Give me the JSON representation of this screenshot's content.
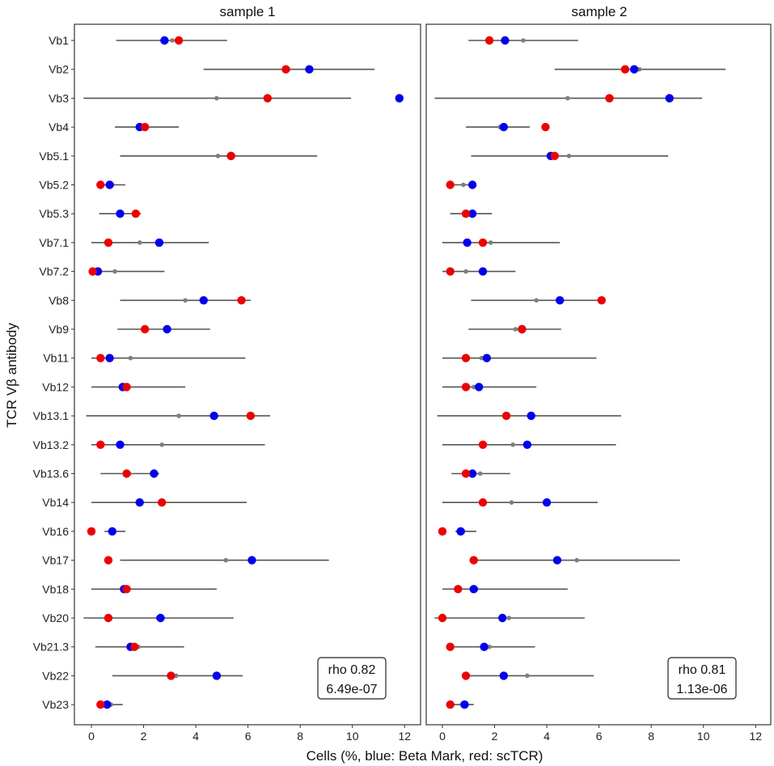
{
  "chart_data": {
    "type": "scatter",
    "subtype": "dot-and-interval",
    "ylabel": "TCR Vβ antibody",
    "xlabel": "Cells (%, blue: Beta Mark, red: scTCR)",
    "xlim": [
      -0.4,
      12.4
    ],
    "xticks": [
      0,
      2,
      4,
      6,
      8,
      10,
      12
    ],
    "grid": false,
    "categories": [
      "Vb1",
      "Vb2",
      "Vb3",
      "Vb4",
      "Vb5.1",
      "Vb5.2",
      "Vb5.3",
      "Vb7.1",
      "Vb7.2",
      "Vb8",
      "Vb9",
      "Vb11",
      "Vb12",
      "Vb13.1",
      "Vb13.2",
      "Vb13.6",
      "Vb14",
      "Vb16",
      "Vb17",
      "Vb18",
      "Vb20",
      "Vb21.3",
      "Vb22",
      "Vb23"
    ],
    "colors": {
      "blue": "#0000ee",
      "red": "#ee0000",
      "range": "#555555",
      "median": "#7f7f7f"
    },
    "panels": [
      {
        "title": "sample 1",
        "stats": {
          "rho": "rho 0.82",
          "p": "6.49e-07"
        },
        "range_low": [
          0.95,
          4.3,
          -0.3,
          0.9,
          1.1,
          0.3,
          0.3,
          0.0,
          0.0,
          1.1,
          1.0,
          0.0,
          0.0,
          -0.2,
          0.0,
          0.35,
          0.0,
          0.5,
          1.1,
          0.0,
          -0.3,
          0.15,
          0.8,
          0.4
        ],
        "range_high": [
          5.2,
          10.85,
          9.95,
          3.35,
          8.65,
          1.3,
          1.9,
          4.5,
          2.8,
          6.1,
          4.55,
          5.9,
          3.6,
          6.85,
          6.65,
          2.6,
          5.95,
          1.3,
          9.1,
          4.8,
          5.45,
          3.55,
          5.8,
          1.2
        ],
        "median": [
          3.1,
          7.55,
          4.8,
          2.0,
          4.85,
          0.8,
          1.1,
          1.85,
          0.9,
          3.6,
          2.85,
          1.5,
          1.2,
          3.35,
          2.7,
          1.45,
          1.85,
          0.8,
          5.15,
          1.3,
          2.55,
          1.8,
          3.25,
          0.75
        ],
        "blue": [
          2.8,
          8.35,
          11.8,
          1.85,
          5.35,
          0.7,
          1.1,
          2.6,
          0.25,
          4.3,
          2.9,
          0.7,
          1.2,
          4.7,
          1.1,
          2.4,
          1.85,
          0.8,
          6.15,
          1.25,
          2.65,
          1.5,
          4.8,
          0.6
        ],
        "red": [
          3.35,
          7.45,
          6.75,
          2.05,
          5.35,
          0.35,
          1.7,
          0.65,
          0.05,
          5.75,
          2.05,
          0.35,
          1.35,
          6.1,
          0.35,
          1.35,
          2.7,
          0.0,
          0.65,
          1.35,
          0.65,
          1.65,
          3.05,
          0.35
        ]
      },
      {
        "title": "sample 2",
        "stats": {
          "rho": "rho 0.81",
          "p": "1.13e-06"
        },
        "range_low": [
          1.0,
          4.3,
          -0.3,
          0.9,
          1.1,
          0.3,
          0.3,
          0.0,
          0.0,
          1.1,
          1.0,
          0.0,
          0.0,
          -0.2,
          0.0,
          0.35,
          0.0,
          0.5,
          1.1,
          0.0,
          -0.3,
          0.15,
          0.8,
          0.4
        ],
        "range_high": [
          5.2,
          10.85,
          9.95,
          3.35,
          8.65,
          1.3,
          1.9,
          4.5,
          2.8,
          6.1,
          4.55,
          5.9,
          3.6,
          6.85,
          6.65,
          2.6,
          5.95,
          1.3,
          9.1,
          4.8,
          5.45,
          3.55,
          5.8,
          1.2
        ],
        "median": [
          3.1,
          7.55,
          4.8,
          2.2,
          4.85,
          0.8,
          1.1,
          1.85,
          0.9,
          3.6,
          2.8,
          1.5,
          1.2,
          3.35,
          2.7,
          1.45,
          2.65,
          0.8,
          5.15,
          1.3,
          2.55,
          1.8,
          3.25,
          0.75
        ],
        "blue": [
          2.4,
          7.35,
          8.7,
          2.35,
          4.15,
          1.15,
          1.15,
          0.95,
          1.55,
          4.5,
          3.05,
          1.7,
          1.4,
          3.4,
          3.25,
          1.15,
          4.0,
          0.7,
          4.4,
          1.2,
          2.3,
          1.6,
          2.35,
          0.85
        ],
        "red": [
          1.8,
          7.0,
          6.4,
          3.95,
          4.3,
          0.3,
          0.9,
          1.55,
          0.3,
          6.1,
          3.05,
          0.9,
          0.9,
          2.45,
          1.55,
          0.9,
          1.55,
          0.0,
          1.2,
          0.6,
          0.0,
          0.3,
          0.9,
          0.3
        ]
      }
    ]
  }
}
